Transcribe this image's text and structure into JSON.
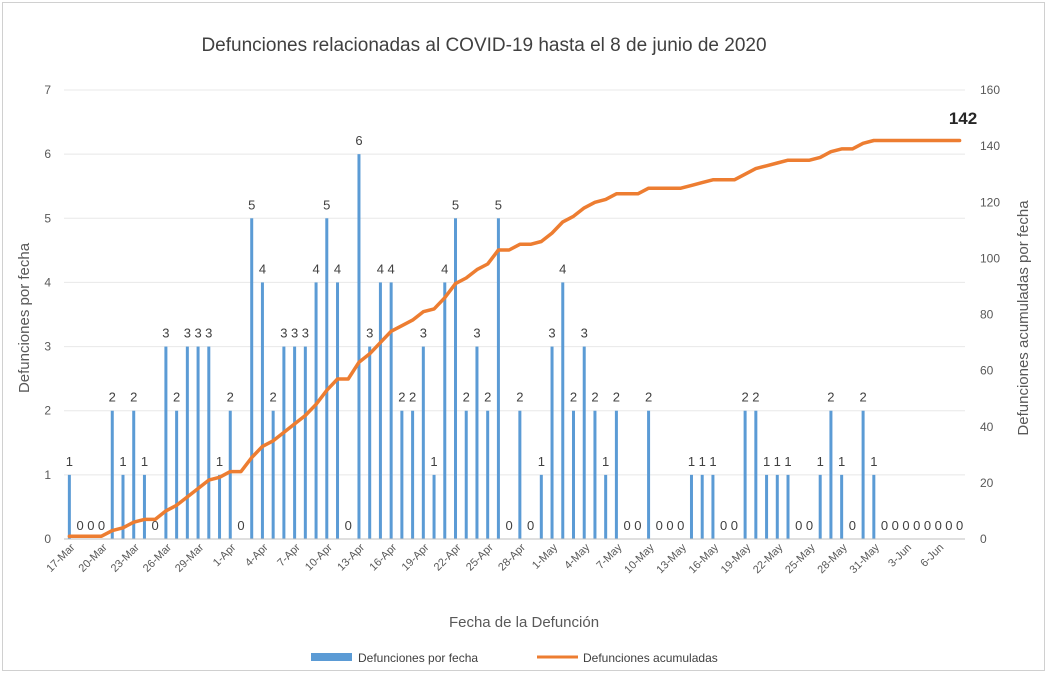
{
  "chart_data": {
    "type": "bar+line",
    "title": "Defunciones relacionadas al COVID-19 hasta el 8 de junio de 2020",
    "xlabel": "Fecha de la Defunción",
    "ylabel": "Defunciones por fecha",
    "y2label": "Defunciones acumuladas por fecha",
    "ylim": [
      0,
      7
    ],
    "y_ticks": [
      "0",
      "1",
      "2",
      "3",
      "4",
      "5",
      "6",
      "7"
    ],
    "y2lim": [
      0,
      160
    ],
    "y2_ticks": [
      "0",
      "20",
      "40",
      "60",
      "80",
      "100",
      "120",
      "140",
      "160"
    ],
    "x_tick_labels": [
      "17-Mar",
      "20-Mar",
      "23-Mar",
      "26-Mar",
      "29-Mar",
      "1-Apr",
      "4-Apr",
      "7-Apr",
      "10-Apr",
      "13-Apr",
      "16-Apr",
      "19-Apr",
      "22-Apr",
      "25-Apr",
      "28-Apr",
      "1-May",
      "4-May",
      "7-May",
      "10-May",
      "13-May",
      "16-May",
      "19-May",
      "22-May",
      "25-May",
      "28-May",
      "31-May",
      "3-Jun",
      "6-Jun"
    ],
    "series": [
      {
        "name": "Defunciones por fecha",
        "type": "bar",
        "axis": "left",
        "color": "#5b9bd5",
        "values": [
          1,
          0,
          0,
          0,
          2,
          1,
          2,
          1,
          0,
          3,
          2,
          3,
          3,
          3,
          1,
          2,
          0,
          5,
          4,
          2,
          3,
          3,
          3,
          4,
          5,
          4,
          0,
          6,
          3,
          4,
          4,
          2,
          2,
          3,
          1,
          4,
          5,
          2,
          3,
          2,
          5,
          0,
          2,
          0,
          1,
          3,
          4,
          2,
          3,
          2,
          1,
          2,
          0,
          0,
          2,
          0,
          0,
          0,
          1,
          1,
          1,
          0,
          0,
          2,
          2,
          1,
          1,
          1,
          0,
          0,
          1,
          2,
          1,
          0,
          2,
          1,
          0,
          0,
          0,
          0,
          0,
          0,
          0,
          0
        ]
      },
      {
        "name": "Defunciones acumuladas",
        "type": "line",
        "axis": "right",
        "color": "#ed7d31",
        "values": [
          1,
          1,
          1,
          1,
          3,
          4,
          6,
          7,
          7,
          10,
          12,
          15,
          18,
          21,
          22,
          24,
          24,
          29,
          33,
          35,
          38,
          41,
          44,
          48,
          53,
          57,
          57,
          63,
          66,
          70,
          74,
          76,
          78,
          81,
          82,
          86,
          91,
          93,
          96,
          98,
          103,
          103,
          105,
          105,
          106,
          109,
          113,
          115,
          118,
          120,
          121,
          123,
          123,
          123,
          125,
          125,
          125,
          125,
          126,
          127,
          128,
          128,
          128,
          130,
          132,
          133,
          134,
          135,
          135,
          135,
          136,
          138,
          139,
          139,
          141,
          142,
          142,
          142,
          142,
          142,
          142,
          142,
          142,
          142
        ]
      }
    ],
    "final_label": "142",
    "legend": [
      "Defunciones por fecha",
      "Defunciones acumuladas"
    ],
    "legend_position": "bottom"
  }
}
